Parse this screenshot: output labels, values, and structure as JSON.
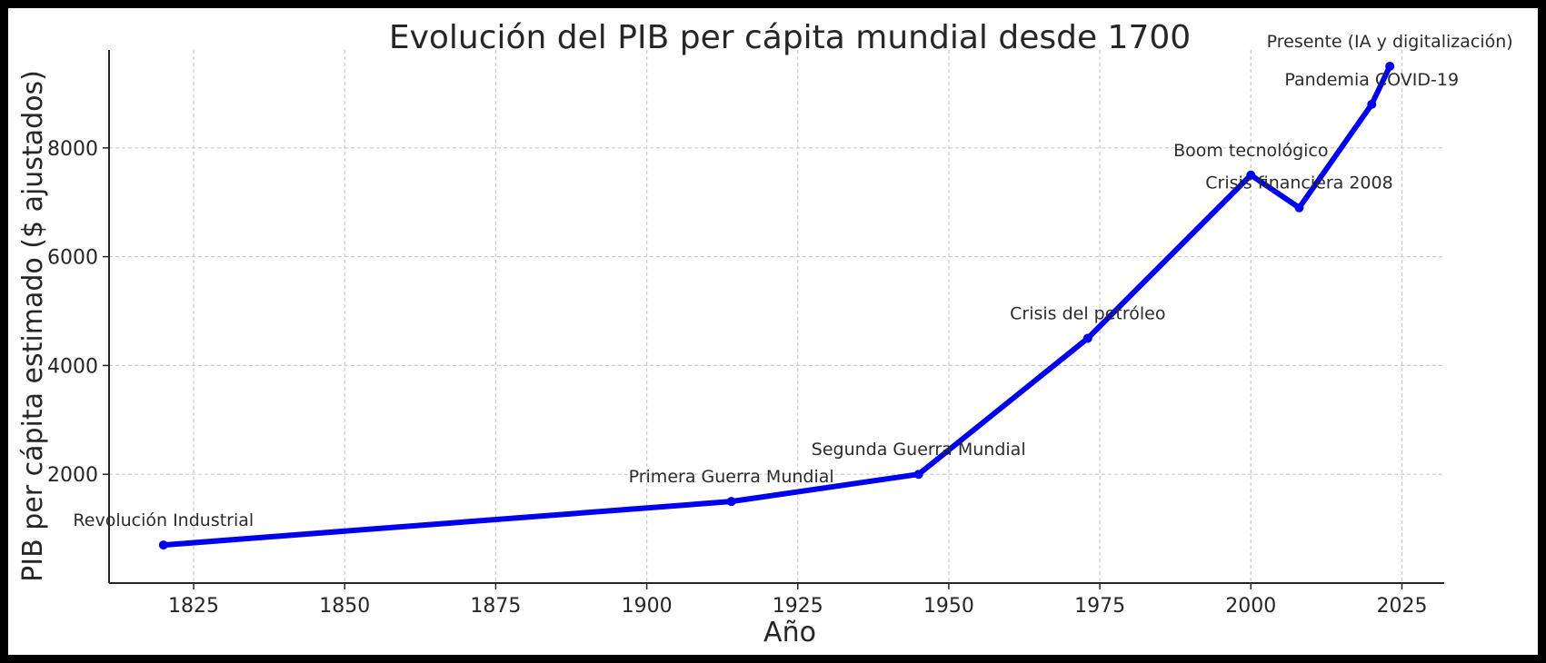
{
  "chart_data": {
    "type": "line",
    "title": "Evolución del PIB per cápita mundial desde 1700",
    "xlabel": "Año",
    "ylabel": "PIB per cápita estimado ($ ajustados)",
    "xlim": [
      1811,
      2032
    ],
    "ylim": [
      0,
      9800
    ],
    "xticks": [
      1825,
      1850,
      1875,
      1900,
      1925,
      1950,
      1975,
      2000,
      2025
    ],
    "yticks": [
      2000,
      4000,
      6000,
      8000
    ],
    "grid": true,
    "series": [
      {
        "color": "#0000ee",
        "x": [
          1820,
          1914,
          1945,
          1973,
          2000,
          2008,
          2020,
          2023
        ],
        "y": [
          700,
          1500,
          2000,
          4500,
          7500,
          6900,
          8800,
          9500
        ]
      }
    ],
    "annotations": [
      {
        "text": "Revolución Industrial",
        "x": 1820,
        "y": 700
      },
      {
        "text": "Primera Guerra Mundial",
        "x": 1914,
        "y": 1500
      },
      {
        "text": "Segunda Guerra Mundial",
        "x": 1945,
        "y": 2000
      },
      {
        "text": "Crisis del petróleo",
        "x": 1973,
        "y": 4500
      },
      {
        "text": "Boom tecnológico",
        "x": 2000,
        "y": 7500
      },
      {
        "text": "Crisis financiera 2008",
        "x": 2008,
        "y": 6900
      },
      {
        "text": "Pandemia COVID-19",
        "x": 2020,
        "y": 8800
      },
      {
        "text": "Presente (IA y digitalización)",
        "x": 2023,
        "y": 9500
      }
    ]
  }
}
